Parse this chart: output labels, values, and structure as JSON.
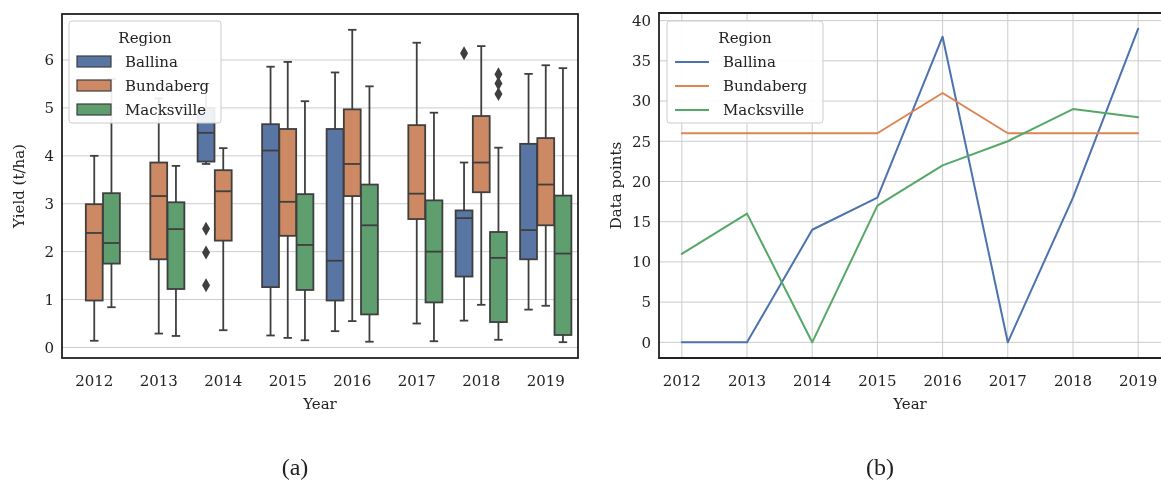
{
  "chart_data": [
    {
      "type": "box",
      "xlabel": "Year",
      "ylabel": "Yield (t/ha)",
      "legend_title": "Region",
      "legend": "top left",
      "grid": "y",
      "annotations": [
        "(a)"
      ],
      "categories": [
        "2012",
        "2013",
        "2014",
        "2015",
        "2016",
        "2017",
        "2018",
        "2019"
      ],
      "ylim": [
        -0.22,
        6.96
      ],
      "yticks": [
        0,
        1,
        2,
        3,
        4,
        5,
        6
      ],
      "series": [
        {
          "name": "Ballina",
          "color": "#5875a4",
          "boxes": [
            null,
            null,
            {
              "low": 3.83,
              "q1": 3.88,
              "median": 4.48,
              "q3": 5.0,
              "high": 5.5,
              "outliers": [
                2.48,
                1.98,
                1.3
              ]
            },
            {
              "low": 0.25,
              "q1": 1.26,
              "median": 4.11,
              "q3": 4.66,
              "high": 5.86
            },
            {
              "low": 0.34,
              "q1": 0.98,
              "median": 1.81,
              "q3": 4.56,
              "high": 5.74
            },
            null,
            {
              "low": 0.56,
              "q1": 1.48,
              "median": 2.7,
              "q3": 2.86,
              "high": 3.86,
              "outliers": [
                6.14
              ]
            },
            {
              "low": 0.79,
              "q1": 1.84,
              "median": 2.45,
              "q3": 4.25,
              "high": 5.71
            }
          ]
        },
        {
          "name": "Bundaberg",
          "color": "#cc8963",
          "boxes": [
            {
              "low": 0.14,
              "q1": 0.98,
              "median": 2.39,
              "q3": 2.99,
              "high": 4.0
            },
            {
              "low": 0.29,
              "q1": 1.84,
              "median": 3.16,
              "q3": 3.86,
              "high": 5.2
            },
            {
              "low": 0.36,
              "q1": 2.23,
              "median": 3.26,
              "q3": 3.7,
              "high": 4.16
            },
            {
              "low": 0.2,
              "q1": 2.33,
              "median": 3.04,
              "q3": 4.56,
              "high": 5.96
            },
            {
              "low": 0.55,
              "q1": 3.16,
              "median": 3.83,
              "q3": 4.97,
              "high": 6.63
            },
            {
              "low": 0.5,
              "q1": 2.68,
              "median": 3.21,
              "q3": 4.64,
              "high": 6.36
            },
            {
              "low": 0.89,
              "q1": 3.24,
              "median": 3.86,
              "q3": 4.83,
              "high": 6.29
            },
            {
              "low": 0.87,
              "q1": 2.55,
              "median": 3.4,
              "q3": 4.37,
              "high": 5.89
            }
          ]
        },
        {
          "name": "Macksville",
          "color": "#5f9e6e",
          "boxes": [
            {
              "low": 0.84,
              "q1": 1.75,
              "median": 2.18,
              "q3": 3.22,
              "high": 5.6
            },
            {
              "low": 0.24,
              "q1": 1.22,
              "median": 2.47,
              "q3": 3.03,
              "high": 3.79
            },
            null,
            {
              "low": 0.15,
              "q1": 1.2,
              "median": 2.14,
              "q3": 3.2,
              "high": 5.14
            },
            {
              "low": 0.12,
              "q1": 0.69,
              "median": 2.55,
              "q3": 3.4,
              "high": 5.45
            },
            {
              "low": 0.13,
              "q1": 0.94,
              "median": 2.0,
              "q3": 3.07,
              "high": 4.9
            },
            {
              "low": 0.16,
              "q1": 0.53,
              "median": 1.87,
              "q3": 2.41,
              "high": 4.17,
              "outliers": [
                5.7,
                5.51,
                5.29
              ]
            },
            {
              "low": 0.11,
              "q1": 0.26,
              "median": 1.96,
              "q3": 3.17,
              "high": 5.83
            }
          ]
        }
      ]
    },
    {
      "type": "line",
      "xlabel": "Year",
      "ylabel": "Data points",
      "legend_title": "Region",
      "legend": "top left",
      "grid": true,
      "annotations": [
        "(b)"
      ],
      "x": [
        2012,
        2013,
        2014,
        2015,
        2016,
        2017,
        2018,
        2019
      ],
      "xlim": [
        2011.65,
        2019.35
      ],
      "xticks": [
        2012,
        2013,
        2014,
        2015,
        2016,
        2017,
        2018,
        2019
      ],
      "ylim": [
        -1.95,
        40.95
      ],
      "yticks": [
        0,
        5,
        10,
        15,
        20,
        25,
        30,
        35,
        40
      ],
      "series": [
        {
          "name": "Ballina",
          "color": "#4c72b0",
          "values": [
            0,
            0,
            14,
            18,
            38,
            0,
            18,
            39
          ]
        },
        {
          "name": "Bundaberg",
          "color": "#dd8452",
          "values": [
            26,
            26,
            26,
            26,
            31,
            26,
            26,
            26
          ]
        },
        {
          "name": "Macksville",
          "color": "#55a868",
          "values": [
            11,
            16,
            0,
            17,
            22,
            25,
            29,
            28
          ]
        }
      ]
    }
  ]
}
